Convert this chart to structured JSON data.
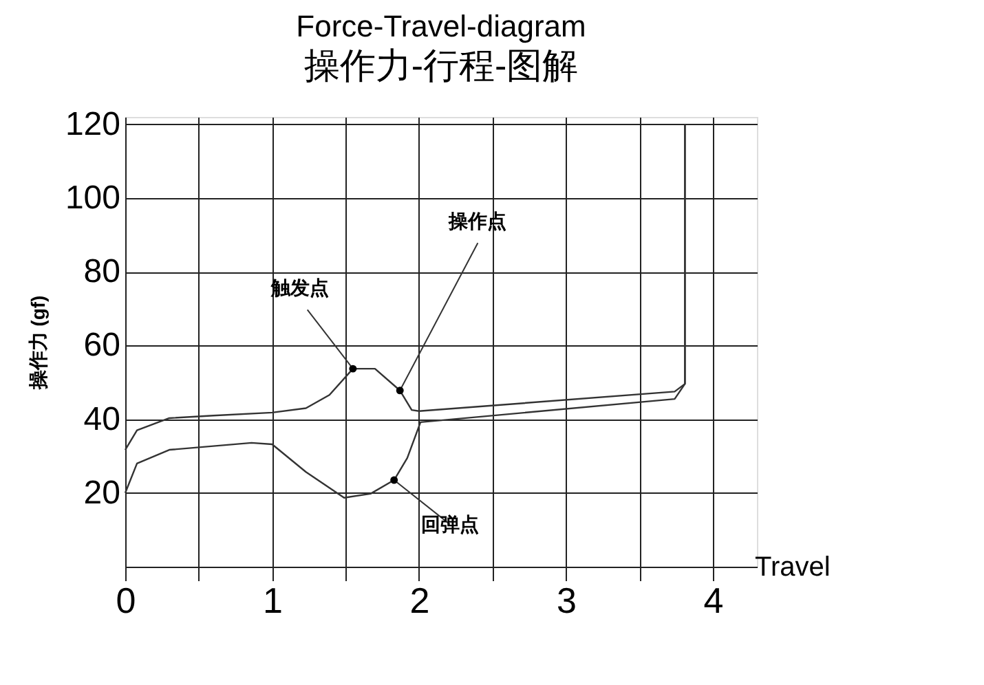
{
  "chart_data": {
    "type": "line",
    "title": "Force-Travel-diagram",
    "subtitle": "操作力-行程-图解",
    "xlabel": "Travel",
    "ylabel": "操作力 (gf)",
    "x": [
      0,
      0.08,
      0.3,
      0.6,
      1.0,
      1.23,
      1.39,
      1.55,
      1.7,
      1.87,
      1.95,
      2.0,
      3.74,
      3.81,
      3.81
    ],
    "series": [
      {
        "color": "#333333",
        "values": [
          31.7,
          37,
          40.3,
          41,
          41.8,
          43,
          46.6,
          53.7,
          53.7,
          47.8,
          42.5,
          42.2,
          47.5,
          49.6,
          120
        ]
      },
      {
        "color": "#333333",
        "x": [
          0,
          0.08,
          0.3,
          0.86,
          1.0,
          1.23,
          1.49,
          1.67,
          1.83,
          1.92,
          2.01,
          3.74,
          3.81,
          3.81
        ],
        "values": [
          20,
          28,
          31.7,
          33.6,
          33.2,
          25.7,
          18.7,
          19.8,
          23.5,
          29.5,
          39.2,
          45.5,
          49.6,
          120
        ]
      }
    ],
    "annotations": [
      {
        "text": "触发点",
        "x": 1.55,
        "y": 53.7
      },
      {
        "text": "操作点",
        "x": 1.87,
        "y": 47.8
      },
      {
        "text": "回弹点",
        "x": 1.83,
        "y": 23.5
      }
    ],
    "xlim": [
      0,
      4.3
    ],
    "ylim": [
      0,
      122
    ],
    "xticks": [
      0,
      {
        "value": 0.5,
        "label": null
      },
      1,
      {
        "value": 1.5,
        "label": null
      },
      2,
      {
        "value": 2.5,
        "label": null
      },
      3,
      {
        "value": 3.5,
        "label": null
      },
      4
    ],
    "yticks": [
      {
        "value": 0,
        "label": null
      },
      20,
      40,
      60,
      80,
      100,
      120
    ],
    "grid": true,
    "legend": false,
    "marker": "none",
    "line_style": "solid"
  }
}
